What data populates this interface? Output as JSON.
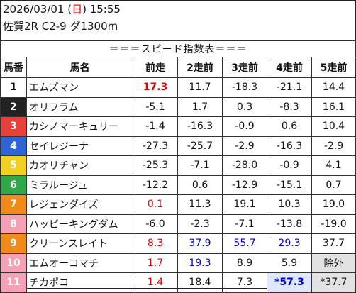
{
  "header": {
    "date_prefix": "2026/03/01 (",
    "weekday": "日",
    "date_suffix": ") 15:55",
    "race_info": "佐賀2R C2-9 ダ1300m"
  },
  "table_title": "＝＝＝スピード指数表＝＝＝",
  "columns": [
    "馬番",
    "馬名",
    "前走",
    "2走前",
    "3走前",
    "4走前",
    "5走前"
  ],
  "rows": [
    {
      "num": "1",
      "name": "エムズマン",
      "vals": [
        "17.3",
        "11.7",
        "-18.3",
        "-21.1",
        "14.4"
      ]
    },
    {
      "num": "2",
      "name": "オリフラム",
      "vals": [
        "-5.1",
        "1.7",
        "0.3",
        "-8.3",
        "16.1"
      ]
    },
    {
      "num": "3",
      "name": "カシノマーキュリー",
      "vals": [
        "-1.4",
        "-16.3",
        "-0.9",
        "0.6",
        "10.4"
      ]
    },
    {
      "num": "4",
      "name": "セイレジーナ",
      "vals": [
        "-27.3",
        "-25.7",
        "-2.9",
        "-16.3",
        "-2.9"
      ]
    },
    {
      "num": "5",
      "name": "カオリチャン",
      "vals": [
        "-25.3",
        "-7.1",
        "-28.0",
        "-0.9",
        "4.1"
      ]
    },
    {
      "num": "6",
      "name": "ミラルージュ",
      "vals": [
        "-12.2",
        "0.6",
        "-12.9",
        "-15.1",
        "0.7"
      ]
    },
    {
      "num": "7",
      "name": "レジェンダイズ",
      "vals": [
        "0.1",
        "11.3",
        "19.1",
        "10.3",
        "19.0"
      ]
    },
    {
      "num": "8",
      "name": "ハッピーキングダム",
      "vals": [
        "-6.0",
        "-2.3",
        "-7.1",
        "-13.8",
        "-19.0"
      ]
    },
    {
      "num": "9",
      "name": "クリーンスレイト",
      "vals": [
        "8.3",
        "37.9",
        "55.7",
        "29.3",
        "37.7"
      ]
    },
    {
      "num": "10",
      "name": "エムオーコマチ",
      "vals": [
        "1.7",
        "19.3",
        "8.9",
        "5.9",
        "除外"
      ]
    },
    {
      "num": "11",
      "name": "チカポコ",
      "vals": [
        "1.4",
        "18.4",
        "7.3",
        "*57.3",
        "*37.7"
      ]
    }
  ],
  "colors": {
    "red_text": "#e00000",
    "blue_text": "#0000dd",
    "top_highlight": "#fff9b0",
    "excluded": "#e2e2e2",
    "frame_1": "#ffffff",
    "frame_2": "#222222",
    "frame_3": "#e8413c",
    "frame_4": "#2f64d6",
    "frame_5": "#f2d020",
    "frame_6": "#2fa84a",
    "frame_7": "#f08a18",
    "frame_8": "#f5a0b4"
  }
}
